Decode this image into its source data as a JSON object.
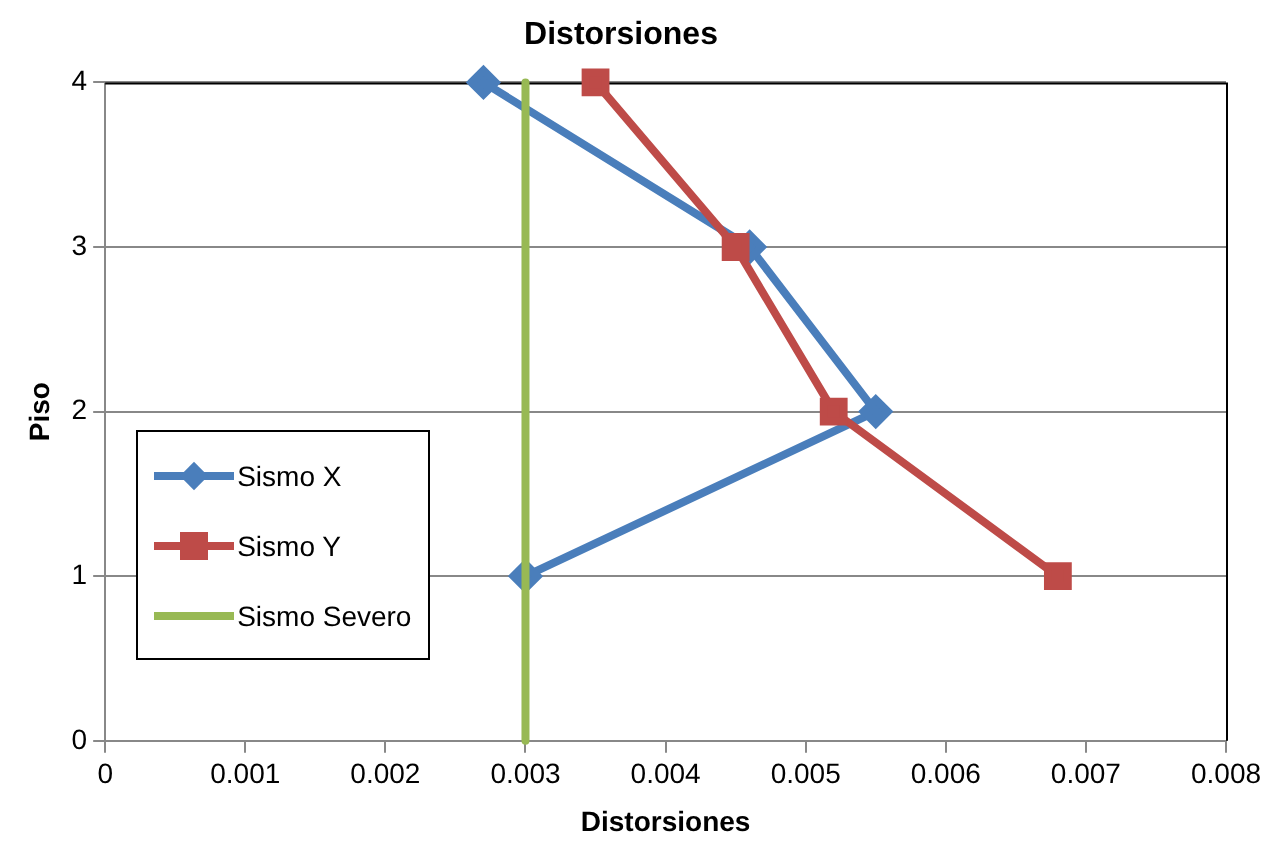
{
  "chart_data": {
    "type": "line",
    "orientation": "horizontal",
    "title": "Distorsiones",
    "xlabel": "Distorsiones",
    "ylabel": "Piso",
    "categories": [
      "4",
      "3",
      "2",
      "1",
      "0"
    ],
    "xlim": [
      0,
      0.008
    ],
    "xticks": [
      0,
      0.001,
      0.002,
      0.003,
      0.004,
      0.005,
      0.006,
      0.007,
      0.008
    ],
    "grid": "y",
    "legend": "bottom left",
    "series": [
      {
        "name": "Sismo X",
        "color": "#4a7ebb",
        "marker": "diamond",
        "values": [
          0.0027,
          0.0046,
          0.0055,
          0.003,
          null
        ]
      },
      {
        "name": "Sismo Y",
        "color": "#be4b48",
        "marker": "square",
        "values": [
          0.0035,
          0.0045,
          0.0052,
          0.0068,
          null
        ]
      },
      {
        "name": "Sismo Severo",
        "color": "#98b954",
        "marker": "none",
        "values": [
          0.003,
          0.003,
          0.003,
          0.003,
          0.003
        ]
      }
    ]
  }
}
